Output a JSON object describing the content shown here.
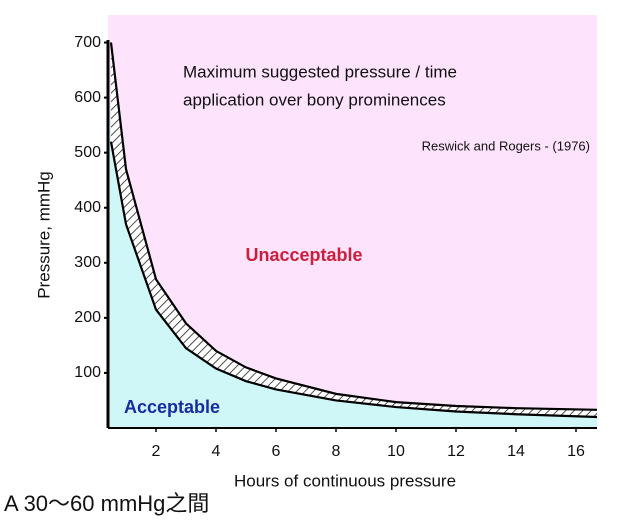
{
  "chart_data": {
    "type": "band-curve",
    "title_lines": [
      "Maximum suggested pressure / time",
      "application over bony prominences"
    ],
    "source": "Reswick and Rogers - (1976)",
    "region_labels": {
      "above": "Unacceptable",
      "below": "Acceptable"
    },
    "x_label": "Hours of continuous pressure",
    "y_label": "Pressure, mmHg",
    "x": [
      0.5,
      1,
      2,
      3,
      4,
      5,
      6,
      8,
      10,
      12,
      14,
      16.7
    ],
    "series": [
      {
        "color": "#000000",
        "values": [
          700,
          470,
          270,
          190,
          140,
          110,
          90,
          62,
          47,
          40,
          36,
          33
        ]
      },
      {
        "color": "#000000",
        "values": [
          520,
          370,
          215,
          145,
          108,
          85,
          70,
          50,
          38,
          30,
          25,
          20
        ]
      }
    ],
    "above_color": "#fde3fb",
    "below_color": "#cff7f7",
    "xlim": [
      0.4,
      16.7
    ],
    "ylim": [
      0,
      750
    ],
    "xticks": [
      2,
      4,
      6,
      8,
      10,
      12,
      14,
      16
    ],
    "yticks": [
      100,
      200,
      300,
      400,
      500,
      600,
      700
    ]
  },
  "caption": "A 30～60 mmHg之間"
}
